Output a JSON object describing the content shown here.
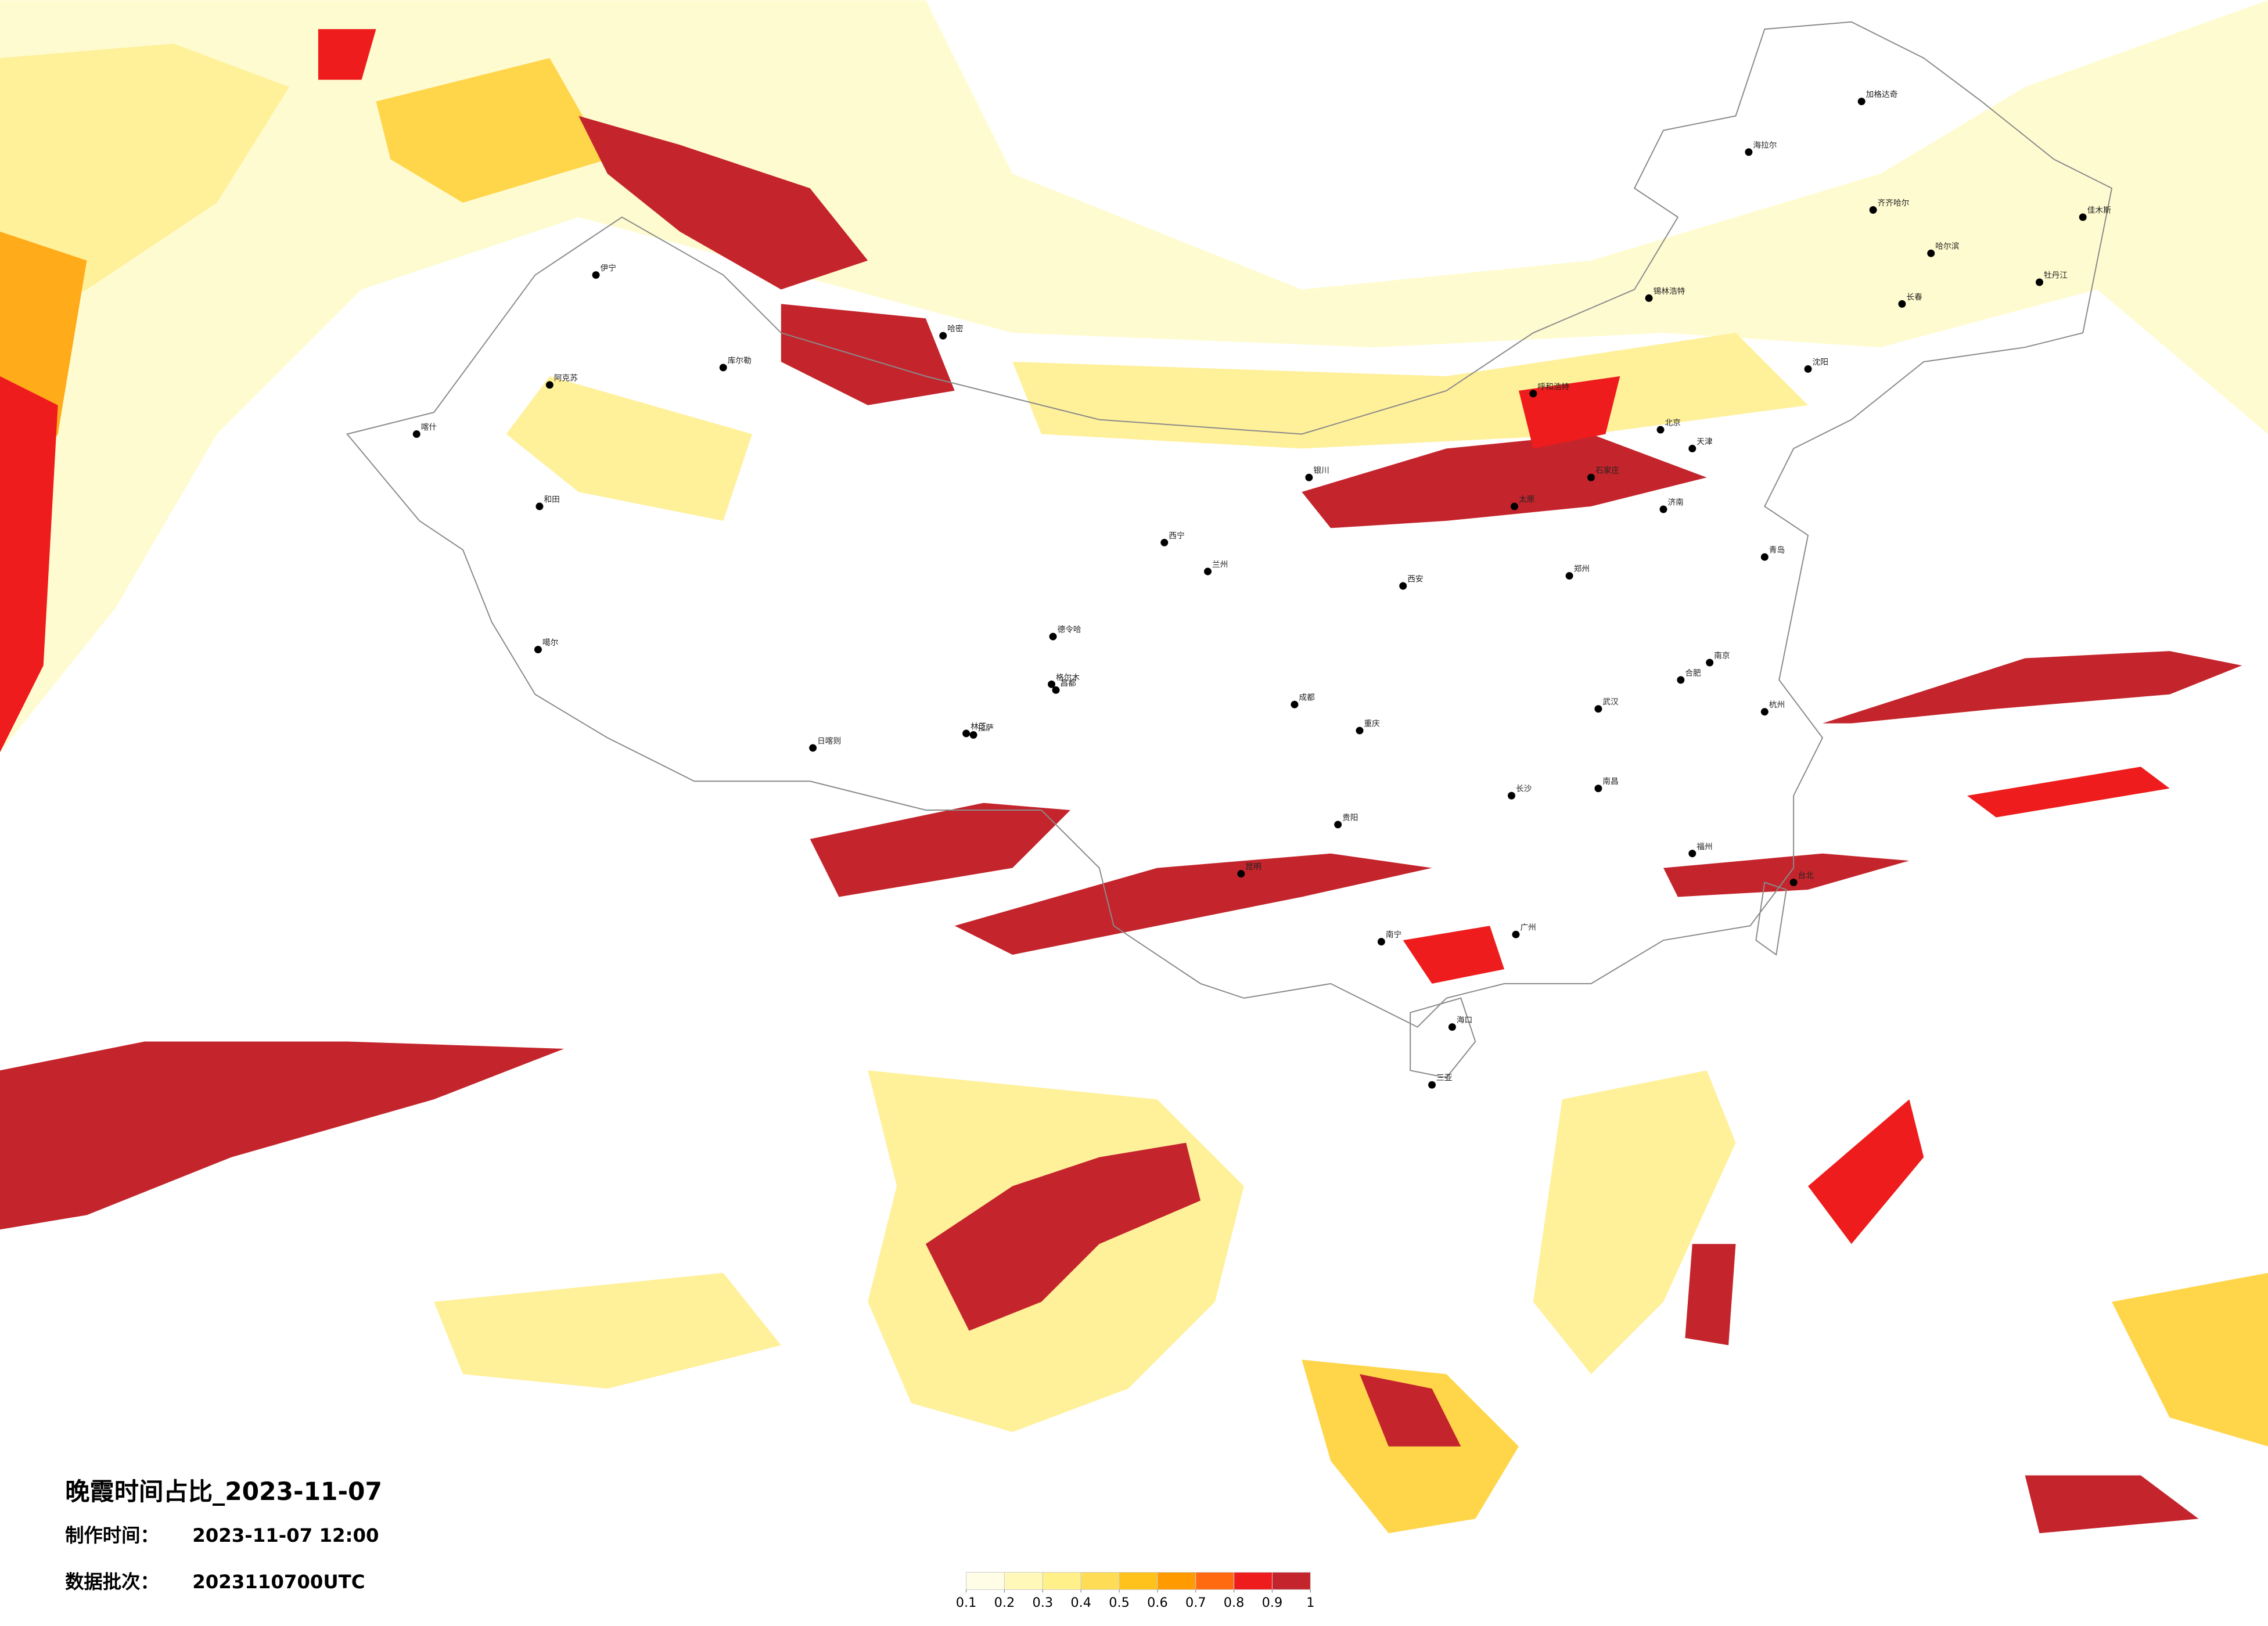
{
  "map": {
    "title": "晚霞时间占比_2023-11-07",
    "produced_label": "制作时间：",
    "produced_time": "2023-11-07 12:00",
    "batch_label": "数据批次：",
    "batch": "2023110700UTC",
    "colorbar": {
      "ticks": [
        0.1,
        0.2,
        0.3,
        0.4,
        0.5,
        0.6,
        0.7,
        0.8,
        0.9,
        1
      ],
      "colors": [
        "#fffde6",
        "#fff8b8",
        "#fff08a",
        "#ffdc55",
        "#ffc21c",
        "#ff9a00",
        "#ff6a10",
        "#ee1c1c",
        "#c4252c"
      ]
    },
    "cities": [
      "伊宁",
      "阿克苏",
      "喀什",
      "和田",
      "库尔勒",
      "哈密",
      "格尔木",
      "噶尔",
      "日喀则",
      "拉萨",
      "林芝",
      "昌都",
      "德令哈",
      "西宁",
      "兰州",
      "银川",
      "呼和浩特",
      "北京",
      "天津",
      "石家庄",
      "太原",
      "济南",
      "郑州",
      "西安",
      "成都",
      "重庆",
      "贵阳",
      "昆明",
      "南宁",
      "广州",
      "海口",
      "长沙",
      "武汉",
      "南昌",
      "福州",
      "杭州",
      "合肥",
      "南京",
      "沈阳",
      "长春",
      "哈尔滨",
      "齐齐哈尔",
      "海拉尔",
      "加格达奇",
      "佳木斯",
      "牡丹江",
      "锡林浩特",
      "青岛",
      "台北",
      "三亚"
    ]
  }
}
